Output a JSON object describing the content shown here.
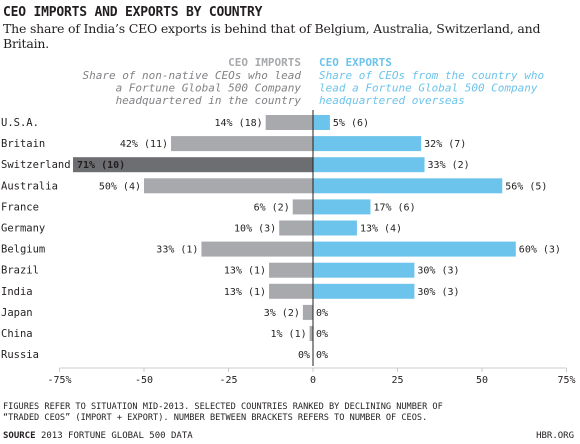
{
  "title": "CEO IMPORTS AND EXPORTS BY COUNTRY",
  "subtitle": "The share of India’s CEO exports is behind that of Belgium, Australia, Switzerland, and Britain.",
  "footnote": "FIGURES REFER TO SITUATION MID-2013. SELECTED COUNTRIES RANKED BY DECLINING NUMBER OF\n“TRADED CEOS” (IMPORT + EXPORT). NUMBER BETWEEN BRACKETS REFERS TO NUMBER OF CEOS.",
  "source_label": "SOURCE",
  "source_text": "2013 FORTUNE GLOBAL 500 DATA",
  "brand": "HBR.ORG",
  "chart_data": {
    "type": "bar",
    "orientation": "horizontal-diverging",
    "categories": [
      "U.S.A.",
      "Britain",
      "Switzerland",
      "Australia",
      "France",
      "Germany",
      "Belgium",
      "Brazil",
      "India",
      "Japan",
      "China",
      "Russia"
    ],
    "series": [
      {
        "name": "CEO IMPORTS",
        "description": "Share of non-native CEOs who lead a Fortune Global 500 Company headquartered in the country",
        "color": "#a7a9ac",
        "highlight_color": "#6d6e71",
        "highlight_index": 2,
        "direction": "left",
        "values": [
          14,
          42,
          71,
          50,
          6,
          10,
          33,
          13,
          13,
          3,
          1,
          0
        ],
        "counts": [
          18,
          11,
          10,
          4,
          2,
          3,
          1,
          1,
          1,
          2,
          1,
          0
        ],
        "labels": [
          "14% (18)",
          "42% (11)",
          "71% (10)",
          "50% (4)",
          "6% (2)",
          "10% (3)",
          "33% (1)",
          "13% (1)",
          "13% (1)",
          "3% (2)",
          "1% (1)",
          "0%"
        ]
      },
      {
        "name": "CEO EXPORTS",
        "description": "Share of CEOs from the country who lead a Fortune Global 500 Company headquartered overseas",
        "color": "#6cc4ec",
        "direction": "right",
        "values": [
          5,
          32,
          33,
          56,
          17,
          13,
          60,
          30,
          30,
          0,
          0,
          0
        ],
        "counts": [
          6,
          7,
          2,
          5,
          6,
          4,
          3,
          3,
          3,
          0,
          0,
          0
        ],
        "labels": [
          "5% (6)",
          "32% (7)",
          "33% (2)",
          "56% (5)",
          "17% (6)",
          "13% (4)",
          "60% (3)",
          "30% (3)",
          "30% (3)",
          "0%",
          "0%",
          "0%"
        ]
      }
    ],
    "x_ticks": [
      "-75%",
      "-50",
      "-25",
      "0",
      "25",
      "50",
      "75%"
    ],
    "x_tick_values": [
      -75,
      -50,
      -25,
      0,
      25,
      50,
      75
    ],
    "xlim": [
      -75,
      75
    ],
    "grid": false,
    "legend": "column headers above bars"
  }
}
